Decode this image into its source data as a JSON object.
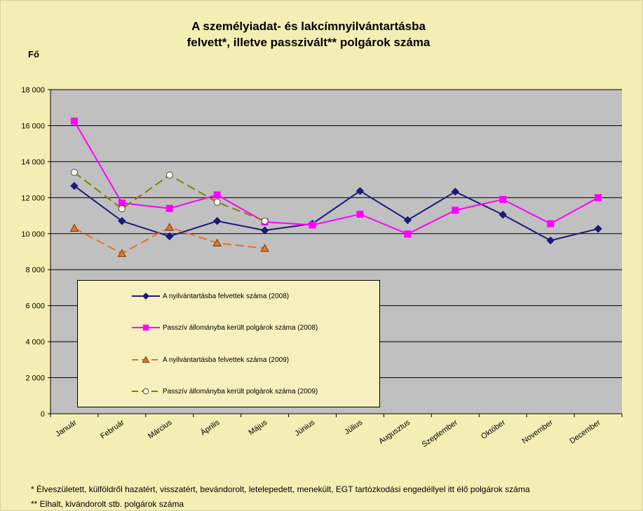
{
  "title_line1": "A személyiadat- és lakcímnyilvántartásba",
  "title_line2": "felvett*, illetve passzivált** polgárok száma",
  "unit": "Fő",
  "chart_data": {
    "type": "line",
    "title": "A személyiadat- és lakcímnyilvántartásba felvett*, illetve passzivált** polgárok száma",
    "ylabel": "Fő",
    "ylim": [
      0,
      18000
    ],
    "yticks": [
      0,
      2000,
      4000,
      6000,
      8000,
      10000,
      12000,
      14000,
      16000,
      18000
    ],
    "ytick_labels": [
      "0",
      "2 000",
      "4 000",
      "6 000",
      "8 000",
      "10 000",
      "12 000",
      "14 000",
      "16 000",
      "18 000"
    ],
    "categories": [
      "Január",
      "Február",
      "Március",
      "Április",
      "Május",
      "Június",
      "Július",
      "Augusztus",
      "Szeptember",
      "Október",
      "November",
      "December"
    ],
    "grid": true,
    "legend_position": "lower-left",
    "series": [
      {
        "name": "A nyilvántartásba felvettek száma (2008)",
        "color": "#1a1a7a",
        "marker": "diamond",
        "dash": "solid",
        "values": [
          12650,
          10700,
          9850,
          10700,
          10180,
          10550,
          12370,
          10750,
          12330,
          11050,
          9620,
          10270
        ]
      },
      {
        "name": "Passzív állományba került polgárok száma (2008)",
        "color": "#ff00ff",
        "marker": "square",
        "dash": "solid",
        "values": [
          16250,
          11700,
          11400,
          12150,
          10650,
          10480,
          11080,
          9980,
          11300,
          11900,
          10550,
          12000
        ]
      },
      {
        "name": "A nyilvántartásba felvettek száma (2009)",
        "color": "#f07020",
        "marker": "triangle",
        "dash": "dashed",
        "values": [
          10300,
          8900,
          10350,
          9480,
          9180,
          null,
          null,
          null,
          null,
          null,
          null,
          null
        ]
      },
      {
        "name": "Passzív állományba került polgárok száma (2009)",
        "color": "#808000",
        "marker": "circle",
        "dash": "dashed",
        "values": [
          13400,
          11380,
          13250,
          11750,
          10700,
          null,
          null,
          null,
          null,
          null,
          null,
          null
        ]
      }
    ]
  },
  "footnotes": [
    "* Élveszületett, külföldről hazatért, visszatért, bevándorolt, letelepedett, menekült, EGT tartózkodási engedéllyel itt élő  polgárok száma",
    "** Elhalt, kivándorolt stb. polgárok száma"
  ]
}
